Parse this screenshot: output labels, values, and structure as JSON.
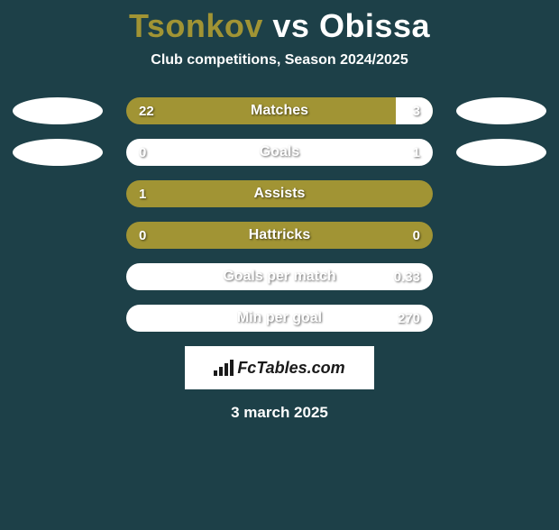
{
  "title": {
    "left": "Tsonkov",
    "vs": "vs",
    "right": "Obissa",
    "left_color": "#a19434",
    "vs_color": "#ffffff",
    "right_color": "#ffffff"
  },
  "subtitle": "Club competitions, Season 2024/2025",
  "colors": {
    "background": "#1d4048",
    "bar_primary": "#a19434",
    "bar_secondary": "#ffffff",
    "text": "#ffffff",
    "oval": "#ffffff"
  },
  "stats": [
    {
      "label": "Matches",
      "left_value": "22",
      "right_value": "3",
      "left_pct": 88,
      "right_pct": 12,
      "show_ovals": true
    },
    {
      "label": "Goals",
      "left_value": "0",
      "right_value": "1",
      "left_pct": 0,
      "right_pct": 100,
      "show_ovals": true
    },
    {
      "label": "Assists",
      "left_value": "1",
      "right_value": "",
      "left_pct": 100,
      "right_pct": 0,
      "show_ovals": false
    },
    {
      "label": "Hattricks",
      "left_value": "0",
      "right_value": "0",
      "left_pct": 100,
      "right_pct": 0,
      "show_ovals": false
    },
    {
      "label": "Goals per match",
      "left_value": "",
      "right_value": "0.33",
      "left_pct": 0,
      "right_pct": 100,
      "show_ovals": false
    },
    {
      "label": "Min per goal",
      "left_value": "",
      "right_value": "270",
      "left_pct": 0,
      "right_pct": 100,
      "show_ovals": false
    }
  ],
  "logo": {
    "text": "FcTables.com"
  },
  "date": "3 march 2025"
}
